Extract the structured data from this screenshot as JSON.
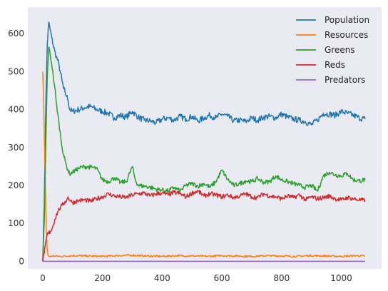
{
  "chart_data": {
    "type": "line",
    "title": "",
    "xlabel": "",
    "ylabel": "",
    "xlim": [
      -50,
      1135
    ],
    "ylim": [
      -20,
      670
    ],
    "xticks": [
      0,
      200,
      400,
      600,
      800,
      1000
    ],
    "yticks": [
      0,
      100,
      200,
      300,
      400,
      500,
      600
    ],
    "grid": false,
    "legend_position": "top-right",
    "background": "#eaeaf2",
    "series": [
      {
        "name": "Population",
        "color": "#1f77b4",
        "x": [
          0,
          5,
          10,
          15,
          20,
          25,
          30,
          35,
          40,
          45,
          50,
          55,
          60,
          65,
          70,
          75,
          80,
          85,
          90,
          100,
          120,
          140,
          160,
          180,
          200,
          220,
          240,
          260,
          280,
          300,
          320,
          340,
          360,
          380,
          400,
          420,
          440,
          460,
          480,
          500,
          520,
          540,
          560,
          580,
          600,
          620,
          640,
          660,
          680,
          700,
          720,
          740,
          760,
          780,
          800,
          820,
          840,
          860,
          880,
          900,
          920,
          940,
          960,
          980,
          1000,
          1020,
          1040,
          1060,
          1080
        ],
        "values": [
          0,
          150,
          400,
          570,
          630,
          610,
          590,
          570,
          555,
          540,
          530,
          515,
          495,
          475,
          455,
          445,
          435,
          425,
          400,
          395,
          400,
          405,
          408,
          400,
          395,
          390,
          378,
          385,
          380,
          395,
          380,
          372,
          370,
          365,
          375,
          378,
          372,
          382,
          375,
          382,
          370,
          378,
          385,
          378,
          388,
          382,
          370,
          372,
          368,
          378,
          372,
          380,
          382,
          378,
          388,
          380,
          375,
          372,
          368,
          360,
          372,
          390,
          388,
          385,
          395,
          390,
          385,
          378,
          375
        ]
      },
      {
        "name": "Resources",
        "color": "#ff7f0e",
        "x": [
          0,
          3,
          6,
          9,
          12,
          15,
          18,
          22,
          30,
          60,
          100,
          150,
          200,
          250,
          300,
          350,
          400,
          450,
          500,
          550,
          600,
          650,
          700,
          750,
          800,
          850,
          900,
          950,
          1000,
          1050,
          1080
        ],
        "values": [
          500,
          420,
          300,
          180,
          80,
          30,
          15,
          12,
          14,
          13,
          15,
          14,
          13,
          15,
          16,
          14,
          13,
          15,
          14,
          13,
          15,
          14,
          13,
          15,
          14,
          13,
          15,
          14,
          13,
          15,
          14
        ]
      },
      {
        "name": "Greens",
        "color": "#2ca02c",
        "x": [
          0,
          5,
          10,
          15,
          20,
          25,
          30,
          35,
          40,
          45,
          50,
          55,
          60,
          65,
          70,
          75,
          80,
          85,
          90,
          100,
          120,
          140,
          160,
          180,
          200,
          220,
          240,
          260,
          280,
          300,
          310,
          320,
          340,
          360,
          380,
          400,
          420,
          440,
          460,
          480,
          500,
          520,
          540,
          560,
          580,
          600,
          620,
          640,
          660,
          680,
          700,
          720,
          740,
          760,
          780,
          800,
          820,
          840,
          860,
          880,
          900,
          920,
          940,
          960,
          980,
          1000,
          1020,
          1040,
          1060,
          1080
        ],
        "values": [
          0,
          100,
          300,
          480,
          565,
          545,
          520,
          490,
          460,
          420,
          390,
          360,
          330,
          300,
          280,
          265,
          250,
          240,
          230,
          235,
          245,
          250,
          248,
          245,
          215,
          210,
          220,
          208,
          210,
          250,
          215,
          200,
          198,
          195,
          190,
          188,
          185,
          195,
          185,
          200,
          205,
          198,
          205,
          195,
          210,
          240,
          215,
          200,
          205,
          212,
          210,
          218,
          208,
          210,
          225,
          215,
          210,
          205,
          200,
          195,
          200,
          185,
          225,
          235,
          228,
          225,
          232,
          215,
          212,
          215
        ]
      },
      {
        "name": "Reds",
        "color": "#d62728",
        "x": [
          0,
          5,
          10,
          15,
          20,
          25,
          30,
          35,
          40,
          45,
          50,
          55,
          60,
          65,
          70,
          75,
          80,
          85,
          90,
          100,
          120,
          140,
          160,
          180,
          200,
          220,
          240,
          260,
          280,
          300,
          320,
          340,
          360,
          380,
          400,
          420,
          440,
          460,
          480,
          500,
          520,
          540,
          560,
          580,
          600,
          620,
          640,
          660,
          680,
          700,
          720,
          740,
          760,
          780,
          800,
          820,
          840,
          860,
          880,
          900,
          920,
          940,
          960,
          980,
          1000,
          1020,
          1040,
          1060,
          1080
        ],
        "values": [
          0,
          20,
          50,
          70,
          75,
          78,
          85,
          95,
          110,
          120,
          130,
          138,
          142,
          148,
          152,
          158,
          160,
          170,
          162,
          155,
          160,
          162,
          158,
          165,
          170,
          178,
          172,
          170,
          168,
          175,
          178,
          180,
          172,
          178,
          180,
          175,
          182,
          178,
          170,
          180,
          185,
          172,
          178,
          175,
          170,
          175,
          168,
          172,
          178,
          170,
          168,
          178,
          172,
          170,
          165,
          172,
          168,
          175,
          162,
          170,
          165,
          168,
          172,
          165,
          162,
          168,
          165,
          162,
          160
        ]
      },
      {
        "name": "Predators",
        "color": "#9467bd",
        "x": [
          0,
          1080
        ],
        "values": [
          0,
          0
        ]
      }
    ]
  }
}
